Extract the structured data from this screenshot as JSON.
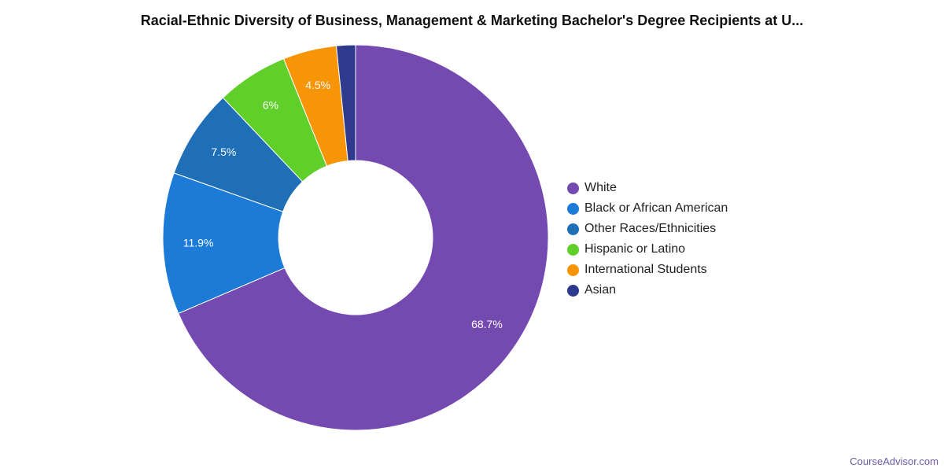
{
  "chart_data": {
    "type": "pie",
    "title": "Racial-Ethnic Diversity of Business, Management & Marketing Bachelor's Degree Recipients at U...",
    "donut": true,
    "legend_position": "right",
    "slices": [
      {
        "name": "White",
        "value": 68.7,
        "label": "68.7%",
        "color": "#7449b0"
      },
      {
        "name": "Black or African American",
        "value": 11.9,
        "label": "11.9%",
        "color": "#1b7bd6"
      },
      {
        "name": "Other Races/Ethnicities",
        "value": 7.5,
        "label": "7.5%",
        "color": "#1f6fb7"
      },
      {
        "name": "Hispanic or Latino",
        "value": 6.0,
        "label": "6%",
        "color": "#60cf2a"
      },
      {
        "name": "International Students",
        "value": 4.5,
        "label": "4.5%",
        "color": "#f79506"
      },
      {
        "name": "Asian",
        "value": 1.6,
        "label": "",
        "color": "#2e3a8c"
      }
    ]
  },
  "source": "CourseAdvisor.com"
}
